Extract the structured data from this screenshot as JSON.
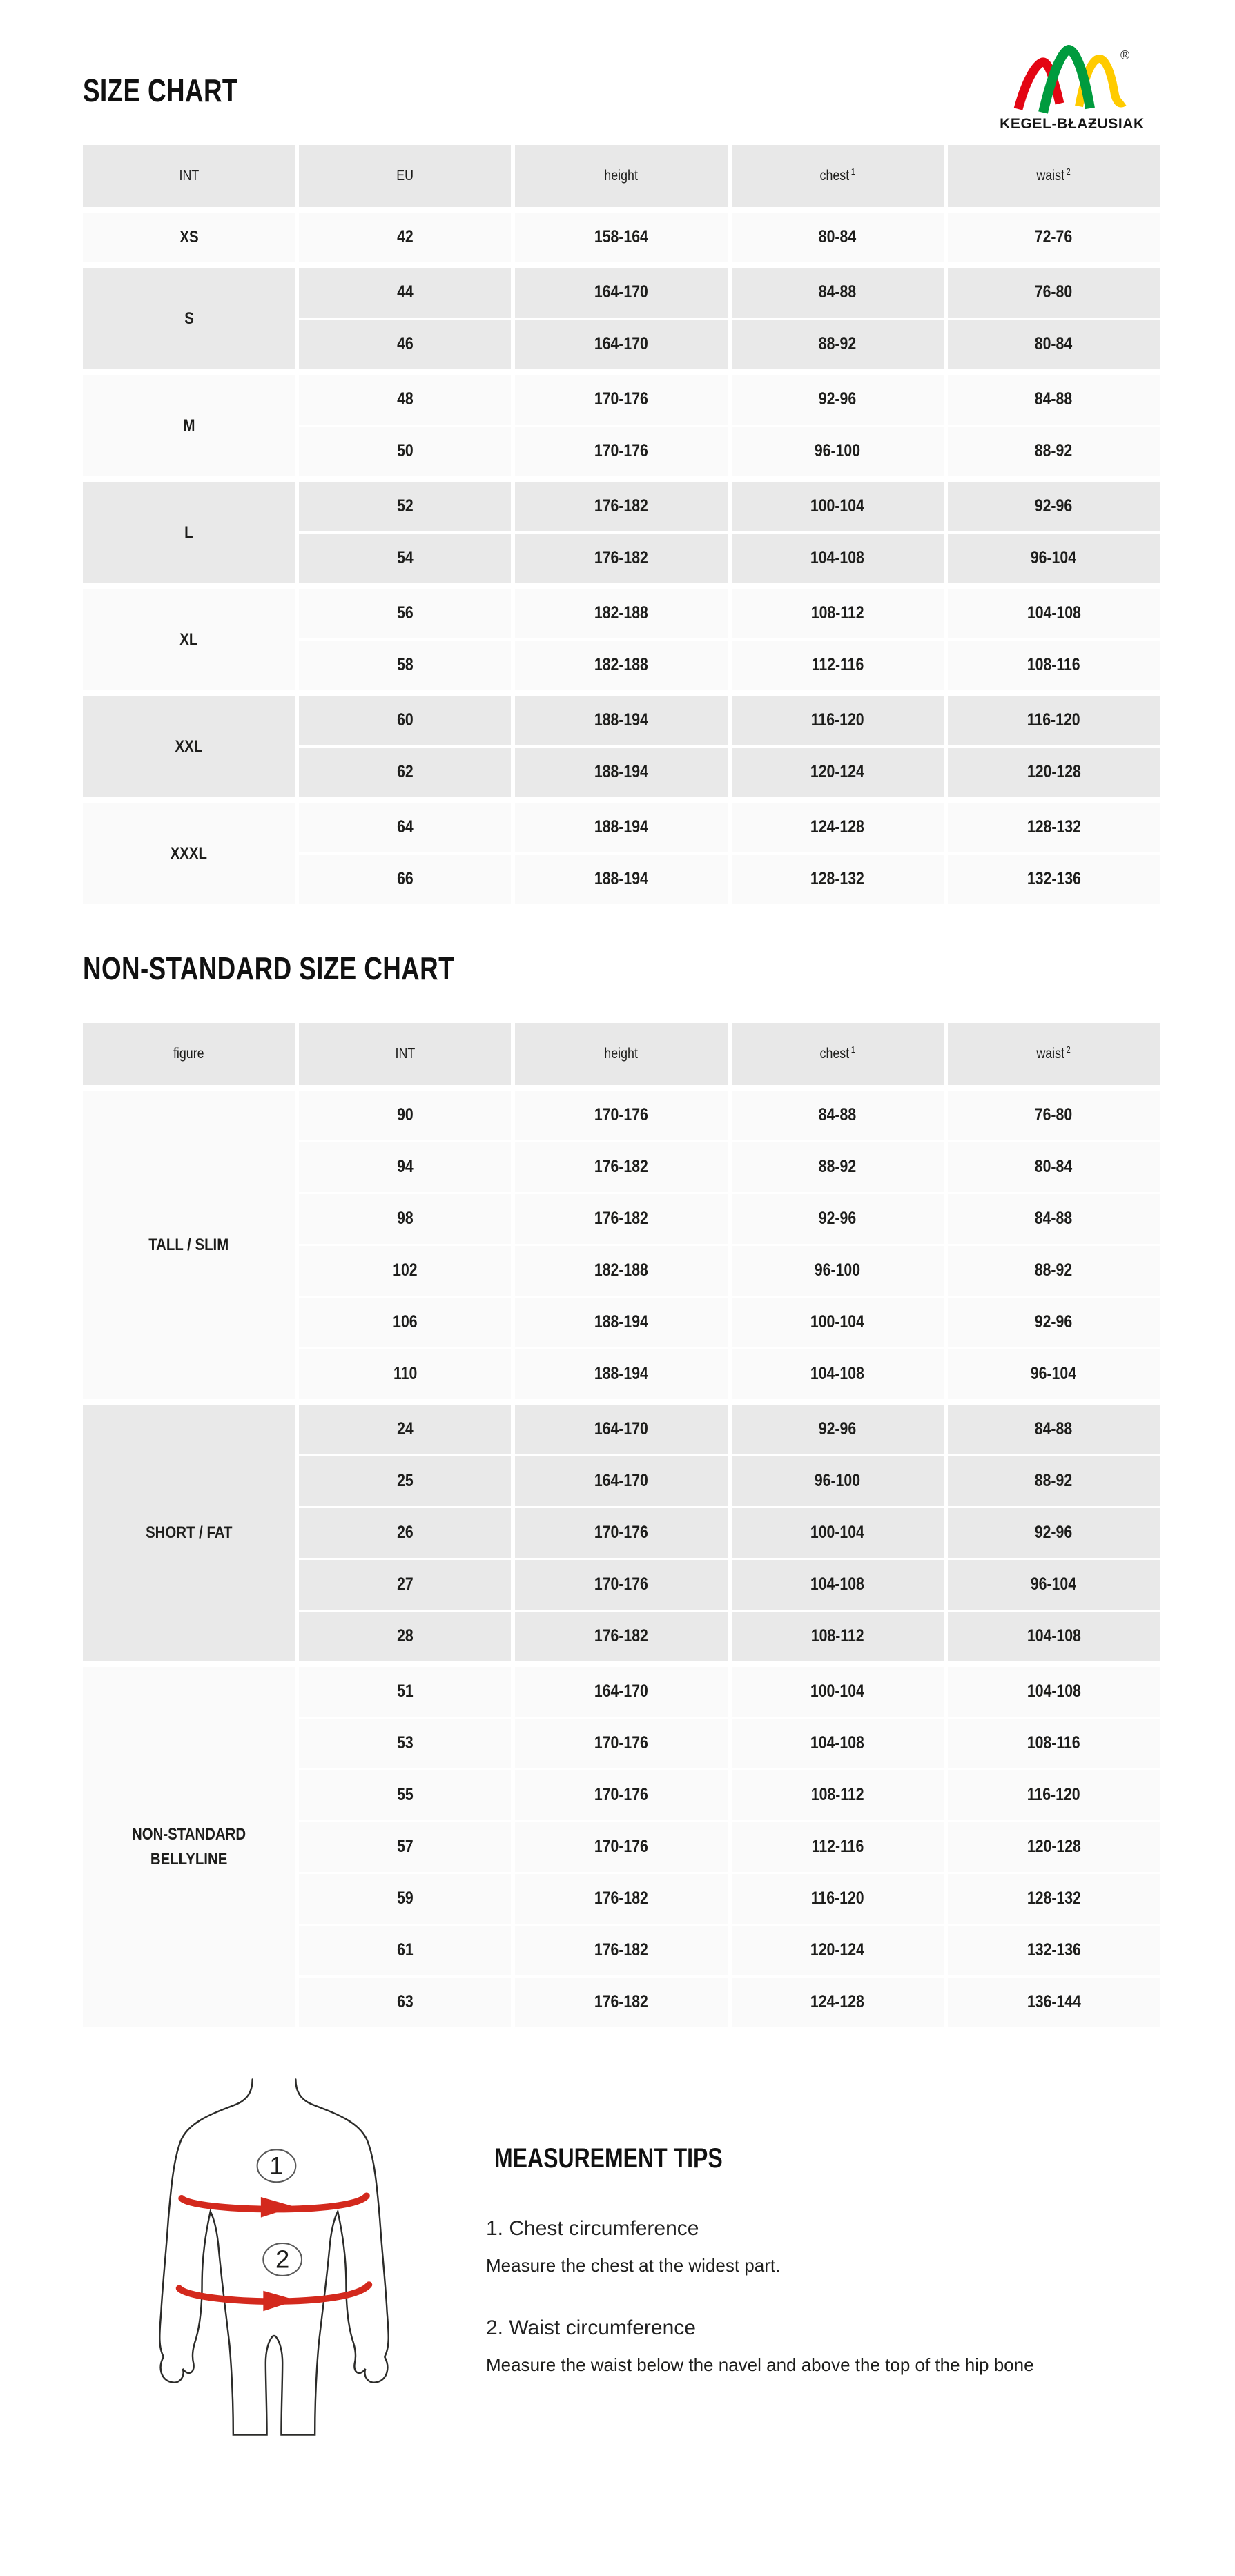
{
  "titles": {
    "size_chart": "SIZE CHART",
    "nonstandard": "NON-STANDARD SIZE CHART"
  },
  "logo": {
    "text": "KEGEL-BŁAƵUSIAK",
    "registered": "®",
    "arch_colors": {
      "red": "#e30613",
      "green": "#009b3e",
      "yellow": "#ffcb00"
    }
  },
  "standard_table": {
    "headers": [
      {
        "key": "int",
        "label": "INT"
      },
      {
        "key": "eu",
        "label": "EU"
      },
      {
        "key": "height",
        "label": "height"
      },
      {
        "key": "chest",
        "label": "chest",
        "sup": "1"
      },
      {
        "key": "waist",
        "label": "waist",
        "sup": "2"
      }
    ],
    "groups": [
      {
        "label": "XS",
        "shade": "light",
        "rows": [
          [
            "42",
            "158-164",
            "80-84",
            "72-76"
          ]
        ]
      },
      {
        "label": "S",
        "shade": "dark",
        "rows": [
          [
            "44",
            "164-170",
            "84-88",
            "76-80"
          ],
          [
            "46",
            "164-170",
            "88-92",
            "80-84"
          ]
        ]
      },
      {
        "label": "M",
        "shade": "light",
        "rows": [
          [
            "48",
            "170-176",
            "92-96",
            "84-88"
          ],
          [
            "50",
            "170-176",
            "96-100",
            "88-92"
          ]
        ]
      },
      {
        "label": "L",
        "shade": "dark",
        "rows": [
          [
            "52",
            "176-182",
            "100-104",
            "92-96"
          ],
          [
            "54",
            "176-182",
            "104-108",
            "96-104"
          ]
        ]
      },
      {
        "label": "XL",
        "shade": "light",
        "rows": [
          [
            "56",
            "182-188",
            "108-112",
            "104-108"
          ],
          [
            "58",
            "182-188",
            "112-116",
            "108-116"
          ]
        ]
      },
      {
        "label": "XXL",
        "shade": "dark",
        "rows": [
          [
            "60",
            "188-194",
            "116-120",
            "116-120"
          ],
          [
            "62",
            "188-194",
            "120-124",
            "120-128"
          ]
        ]
      },
      {
        "label": "XXXL",
        "shade": "light",
        "rows": [
          [
            "64",
            "188-194",
            "124-128",
            "128-132"
          ],
          [
            "66",
            "188-194",
            "128-132",
            "132-136"
          ]
        ]
      }
    ]
  },
  "nonstandard_table": {
    "headers": [
      {
        "key": "figure",
        "label": "figure"
      },
      {
        "key": "int",
        "label": "INT"
      },
      {
        "key": "height",
        "label": "height"
      },
      {
        "key": "chest",
        "label": "chest",
        "sup": "1"
      },
      {
        "key": "waist",
        "label": "waist",
        "sup": "2"
      }
    ],
    "groups": [
      {
        "label": "TALL / SLIM",
        "shade": "light",
        "rows": [
          [
            "90",
            "170-176",
            "84-88",
            "76-80"
          ],
          [
            "94",
            "176-182",
            "88-92",
            "80-84"
          ],
          [
            "98",
            "176-182",
            "92-96",
            "84-88"
          ],
          [
            "102",
            "182-188",
            "96-100",
            "88-92"
          ],
          [
            "106",
            "188-194",
            "100-104",
            "92-96"
          ],
          [
            "110",
            "188-194",
            "104-108",
            "96-104"
          ]
        ]
      },
      {
        "label": "SHORT / FAT",
        "shade": "dark",
        "rows": [
          [
            "24",
            "164-170",
            "92-96",
            "84-88"
          ],
          [
            "25",
            "164-170",
            "96-100",
            "88-92"
          ],
          [
            "26",
            "170-176",
            "100-104",
            "92-96"
          ],
          [
            "27",
            "170-176",
            "104-108",
            "96-104"
          ],
          [
            "28",
            "176-182",
            "108-112",
            "104-108"
          ]
        ]
      },
      {
        "label": "NON-STANDARD BELLYLINE",
        "shade": "light",
        "rows": [
          [
            "51",
            "164-170",
            "100-104",
            "104-108"
          ],
          [
            "53",
            "170-176",
            "104-108",
            "108-116"
          ],
          [
            "55",
            "170-176",
            "108-112",
            "116-120"
          ],
          [
            "57",
            "170-176",
            "112-116",
            "120-128"
          ],
          [
            "59",
            "176-182",
            "116-120",
            "128-132"
          ],
          [
            "61",
            "176-182",
            "120-124",
            "132-136"
          ],
          [
            "63",
            "176-182",
            "124-128",
            "136-144"
          ]
        ]
      }
    ]
  },
  "figure": {
    "chest_marker": "1",
    "waist_marker": "2"
  },
  "tips": {
    "heading": "MEASUREMENT TIPS",
    "items": [
      {
        "title": "1. Chest circumference",
        "text": "Measure the chest at the widest part."
      },
      {
        "title": "2. Waist circumference",
        "text": "Measure the waist below the navel and above the top of the hip bone"
      }
    ]
  },
  "colors": {
    "accent_red": "#d3291d",
    "table_header_bg": "#e8e8e8",
    "table_dark_band_bg": "#e9e9e9",
    "table_light_band_bg": "#fafafa",
    "text": "#1d1d1b"
  }
}
